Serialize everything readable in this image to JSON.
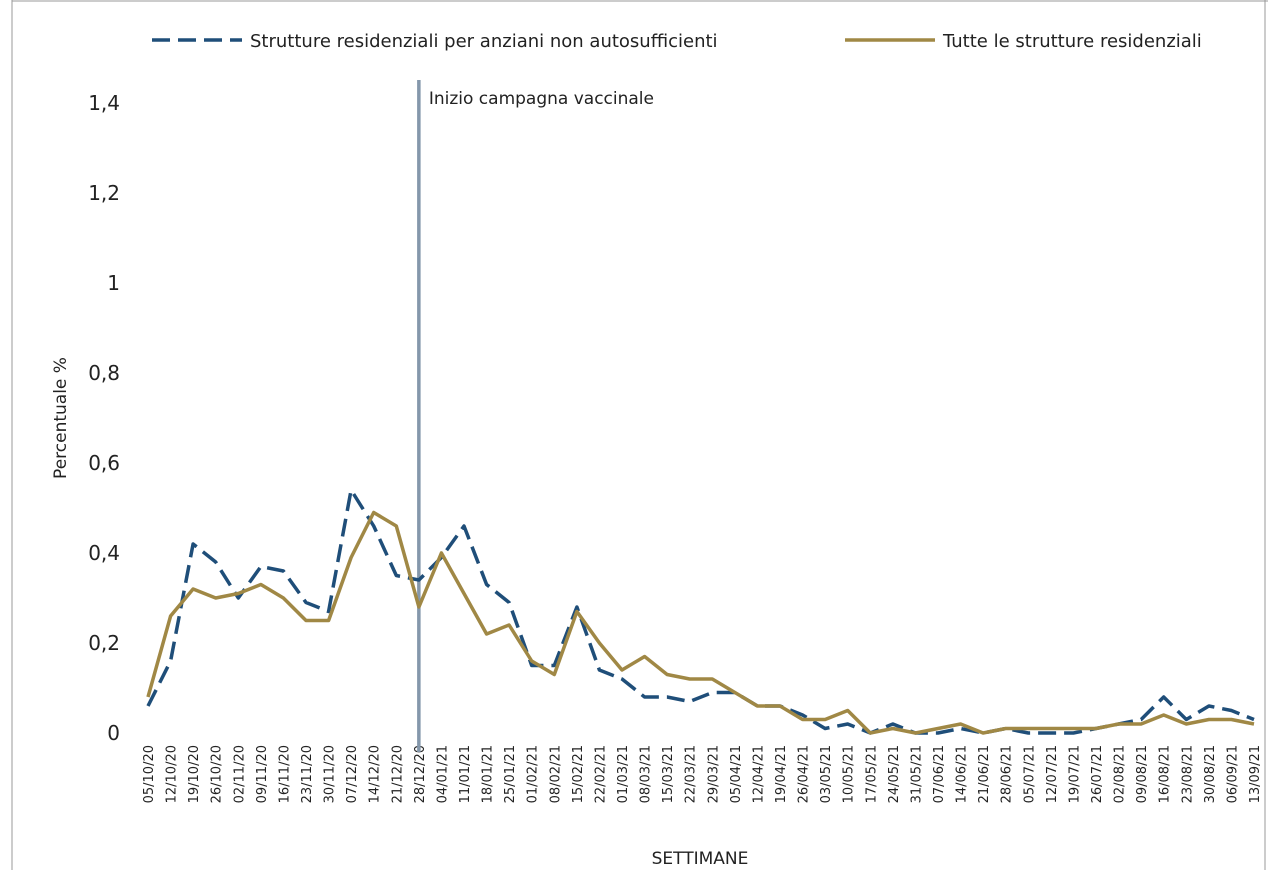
{
  "chart_data": {
    "type": "line",
    "categories": [
      "05/10/20",
      "12/10/20",
      "19/10/20",
      "26/10/20",
      "02/11/20",
      "09/11/20",
      "16/11/20",
      "23/11/20",
      "30/11/20",
      "07/12/20",
      "14/12/20",
      "21/12/20",
      "28/12/20",
      "04/01/21",
      "11/01/21",
      "18/01/21",
      "25/01/21",
      "01/02/21",
      "08/02/21",
      "15/02/21",
      "22/02/21",
      "01/03/21",
      "08/03/21",
      "15/03/21",
      "22/03/21",
      "29/03/21",
      "05/04/21",
      "12/04/21",
      "19/04/21",
      "26/04/21",
      "03/05/21",
      "10/05/21",
      "17/05/21",
      "24/05/21",
      "31/05/21",
      "07/06/21",
      "14/06/21",
      "21/06/21",
      "28/06/21",
      "05/07/21",
      "12/07/21",
      "19/07/21",
      "26/07/21",
      "02/08/21",
      "09/08/21",
      "16/08/21",
      "23/08/21",
      "30/08/21",
      "06/09/21",
      "13/09/21"
    ],
    "series": [
      {
        "name": "Strutture residenziali per anziani non autosufficienti",
        "color": "#1f4e79",
        "dashed": true,
        "values": [
          0.06,
          0.16,
          0.42,
          0.38,
          0.3,
          0.37,
          0.36,
          0.29,
          0.27,
          0.54,
          0.46,
          0.35,
          0.34,
          0.39,
          0.46,
          0.33,
          0.29,
          0.15,
          0.15,
          0.28,
          0.14,
          0.12,
          0.08,
          0.08,
          0.07,
          0.09,
          0.09,
          0.06,
          0.06,
          0.04,
          0.01,
          0.02,
          0.0,
          0.02,
          0.0,
          0.0,
          0.01,
          0.0,
          0.01,
          0.0,
          0.0,
          0.0,
          0.01,
          0.02,
          0.03,
          0.08,
          0.03,
          0.06,
          0.05,
          0.03
        ]
      },
      {
        "name": "Tutte le strutture residenziali",
        "color": "#a08845",
        "dashed": false,
        "values": [
          0.08,
          0.26,
          0.32,
          0.3,
          0.31,
          0.33,
          0.3,
          0.25,
          0.25,
          0.39,
          0.49,
          0.46,
          0.28,
          0.4,
          0.31,
          0.22,
          0.24,
          0.16,
          0.13,
          0.27,
          0.2,
          0.14,
          0.17,
          0.13,
          0.12,
          0.12,
          0.09,
          0.06,
          0.06,
          0.03,
          0.03,
          0.05,
          0.0,
          0.01,
          0.0,
          0.01,
          0.02,
          0.0,
          0.01,
          0.01,
          0.01,
          0.01,
          0.01,
          0.02,
          0.02,
          0.04,
          0.02,
          0.03,
          0.03,
          0.02
        ]
      }
    ],
    "ylim": [
      0,
      1.4
    ],
    "yticks": [
      0,
      {
        "value": 0.2,
        "label": "0,2"
      },
      {
        "value": 0.4,
        "label": "0,4"
      },
      {
        "value": 0.6,
        "label": "0,6"
      },
      {
        "value": 0.8,
        "label": "0,8"
      },
      1,
      {
        "value": 1.2,
        "label": "1,2"
      },
      {
        "value": 1.4,
        "label": "1,4"
      }
    ],
    "y_label": "Percentuale %",
    "x_label": "SETTIMANE",
    "annotation": {
      "x": "28/12/20",
      "label": "Inizio campagna vaccinale",
      "color": "#8497ab"
    },
    "grid": false,
    "legend": "top"
  }
}
